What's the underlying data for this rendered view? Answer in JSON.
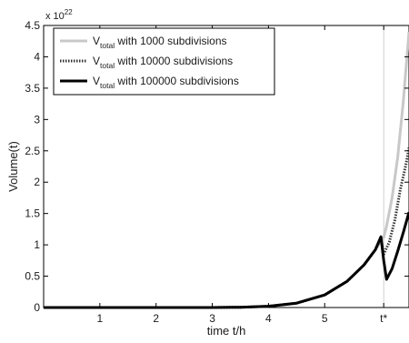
{
  "chart_data": {
    "type": "line",
    "title": "",
    "xlabel": "time t/h",
    "ylabel": "Volume(t)",
    "xlim": [
      0,
      6.5
    ],
    "ylim": [
      0,
      4.5
    ],
    "y_multiplier": {
      "base": "x 10",
      "exponent": "22"
    },
    "x_ticks": [
      {
        "value": 1,
        "label": "1"
      },
      {
        "value": 2,
        "label": "2"
      },
      {
        "value": 3,
        "label": "3"
      },
      {
        "value": 4,
        "label": "4"
      },
      {
        "value": 5,
        "label": "5"
      },
      {
        "value": 6.05,
        "label": "t*"
      }
    ],
    "y_ticks": [
      {
        "value": 0,
        "label": "0"
      },
      {
        "value": 0.5,
        "label": "0.5"
      },
      {
        "value": 1,
        "label": "1"
      },
      {
        "value": 1.5,
        "label": "1.5"
      },
      {
        "value": 2,
        "label": "2"
      },
      {
        "value": 2.5,
        "label": "2.5"
      },
      {
        "value": 3,
        "label": "3"
      },
      {
        "value": 3.5,
        "label": "3.5"
      },
      {
        "value": 4,
        "label": "4"
      },
      {
        "value": 4.5,
        "label": "4.5"
      }
    ],
    "grid": false,
    "legend_position": "top-left",
    "series": [
      {
        "legend_main": "V",
        "legend_sub": "total",
        "legend_rest": " with 1000 subdivisions",
        "color": "#c8c8c8",
        "style": "solid",
        "points": [
          [
            0,
            0
          ],
          [
            3.0,
            0.0
          ],
          [
            3.5,
            0.005
          ],
          [
            4.0,
            0.02
          ],
          [
            4.5,
            0.07
          ],
          [
            5.0,
            0.2
          ],
          [
            5.4,
            0.42
          ],
          [
            5.7,
            0.68
          ],
          [
            5.9,
            0.92
          ],
          [
            6.05,
            1.12
          ],
          [
            6.1,
            1.3
          ],
          [
            6.2,
            1.75
          ],
          [
            6.3,
            2.4
          ],
          [
            6.4,
            3.3
          ],
          [
            6.5,
            4.4
          ]
        ]
      },
      {
        "legend_main": "V",
        "legend_sub": "total",
        "legend_rest": " with 10000 subdivisions",
        "color": "#333333",
        "style": "dotted",
        "points": [
          [
            0,
            0
          ],
          [
            3.0,
            0.0
          ],
          [
            3.5,
            0.005
          ],
          [
            4.0,
            0.02
          ],
          [
            4.5,
            0.07
          ],
          [
            5.0,
            0.2
          ],
          [
            5.4,
            0.42
          ],
          [
            5.7,
            0.68
          ],
          [
            5.9,
            0.92
          ],
          [
            6.0,
            1.1
          ],
          [
            6.05,
            0.85
          ],
          [
            6.15,
            1.05
          ],
          [
            6.25,
            1.4
          ],
          [
            6.35,
            1.9
          ],
          [
            6.45,
            2.3
          ],
          [
            6.5,
            2.55
          ]
        ]
      },
      {
        "legend_main": "V",
        "legend_sub": "total",
        "legend_rest": " with 100000 subdivisions",
        "color": "#000000",
        "style": "solid",
        "points": [
          [
            0,
            0
          ],
          [
            3.0,
            0.0
          ],
          [
            3.5,
            0.005
          ],
          [
            4.0,
            0.02
          ],
          [
            4.5,
            0.07
          ],
          [
            5.0,
            0.2
          ],
          [
            5.4,
            0.42
          ],
          [
            5.7,
            0.68
          ],
          [
            5.9,
            0.92
          ],
          [
            6.0,
            1.13
          ],
          [
            6.05,
            0.75
          ],
          [
            6.1,
            0.45
          ],
          [
            6.2,
            0.62
          ],
          [
            6.3,
            0.9
          ],
          [
            6.4,
            1.2
          ],
          [
            6.5,
            1.52
          ]
        ]
      }
    ]
  }
}
